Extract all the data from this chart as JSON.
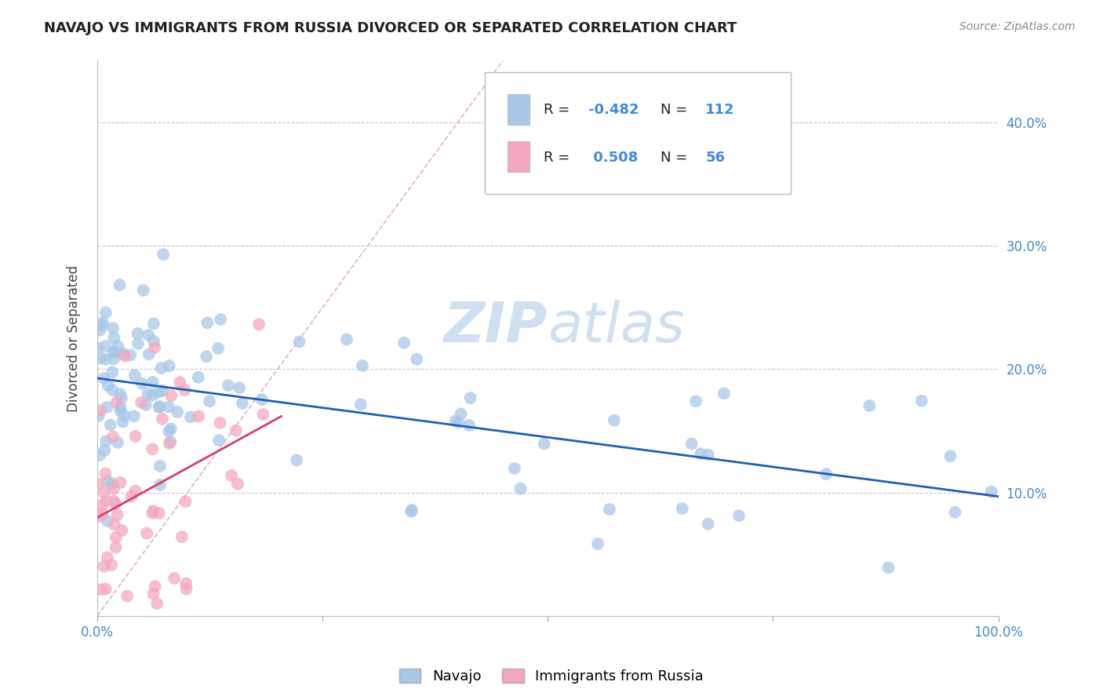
{
  "title": "NAVAJO VS IMMIGRANTS FROM RUSSIA DIVORCED OR SEPARATED CORRELATION CHART",
  "source": "Source: ZipAtlas.com",
  "ylabel": "Divorced or Separated",
  "xlim": [
    0.0,
    1.0
  ],
  "ylim": [
    0.0,
    0.45
  ],
  "navajo_R": -0.482,
  "navajo_N": 112,
  "russia_R": 0.508,
  "russia_N": 56,
  "navajo_color": "#a8c8e8",
  "russia_color": "#f4a8c0",
  "navajo_line_color": "#2060b0",
  "russia_line_color": "#d04070",
  "diag_color": "#e0a0a8",
  "grid_color": "#c8c8d0",
  "text_dark": "#333333",
  "text_blue": "#4488cc",
  "watermark_color": "#d0e0f0",
  "seed": 12345,
  "legend_label_color": "#222222",
  "legend_value_color": "#4488dd"
}
